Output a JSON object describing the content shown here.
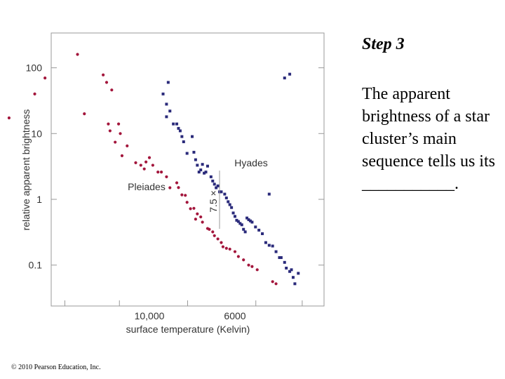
{
  "slide": {
    "title": "Step 3",
    "body": "The apparent brightness of a star cluster’s main sequence tells us its ___________.",
    "copyright": "© 2010 Pearson Education, Inc."
  },
  "chart_data": {
    "type": "scatter",
    "xlabel": "surface temperature (Kelvin)",
    "ylabel": "relative apparent brightness",
    "x_tick_labels": [
      "10,000",
      "6000"
    ],
    "y_ticks": [
      0.1,
      1,
      10,
      100
    ],
    "y_tick_labels": [
      "0.1",
      "1",
      "10",
      "100"
    ],
    "annotation": "7.5 ×",
    "colors": {
      "pleiades": "#a3163c",
      "hyades": "#2a2a7a",
      "axis": "#999999",
      "text": "#333333"
    },
    "series": [
      {
        "name": "Pleiades",
        "label": "Pleiades",
        "points": [
          [
            -0.82,
            17.3
          ],
          [
            -0.67,
            40
          ],
          [
            -0.61,
            70
          ],
          [
            -0.42,
            160
          ],
          [
            -0.38,
            20
          ],
          [
            -0.27,
            78
          ],
          [
            -0.25,
            60
          ],
          [
            -0.22,
            46
          ],
          [
            -0.24,
            14
          ],
          [
            -0.18,
            14
          ],
          [
            -0.23,
            11
          ],
          [
            -0.17,
            10
          ],
          [
            -0.2,
            7.4
          ],
          [
            -0.16,
            4.6
          ],
          [
            -0.13,
            6.5
          ],
          [
            -0.08,
            3.6
          ],
          [
            -0.05,
            3.3
          ],
          [
            -0.03,
            2.9
          ],
          [
            -0.02,
            3.7
          ],
          [
            0.0,
            4.3
          ],
          [
            0.02,
            3.3
          ],
          [
            0.05,
            2.6
          ],
          [
            0.07,
            2.6
          ],
          [
            0.1,
            2.2
          ],
          [
            0.12,
            1.5
          ],
          [
            0.16,
            1.78
          ],
          [
            0.17,
            1.51
          ],
          [
            0.19,
            1.17
          ],
          [
            0.21,
            1.15
          ],
          [
            0.22,
            0.9
          ],
          [
            0.24,
            0.72
          ],
          [
            0.26,
            0.73
          ],
          [
            0.27,
            0.5
          ],
          [
            0.28,
            0.6
          ],
          [
            0.3,
            0.54
          ],
          [
            0.31,
            0.45
          ],
          [
            0.34,
            0.36
          ],
          [
            0.35,
            0.35
          ],
          [
            0.37,
            0.32
          ],
          [
            0.38,
            0.28
          ],
          [
            0.4,
            0.25
          ],
          [
            0.42,
            0.22
          ],
          [
            0.43,
            0.19
          ],
          [
            0.45,
            0.18
          ],
          [
            0.47,
            0.175
          ],
          [
            0.5,
            0.16
          ],
          [
            0.52,
            0.135
          ],
          [
            0.55,
            0.12
          ],
          [
            0.58,
            0.1
          ],
          [
            0.6,
            0.095
          ],
          [
            0.63,
            0.085
          ],
          [
            0.72,
            0.056
          ],
          [
            0.74,
            0.052
          ]
        ]
      },
      {
        "name": "Hyades",
        "label": "Hyades",
        "points": [
          [
            0.08,
            40
          ],
          [
            0.1,
            28
          ],
          [
            0.1,
            18
          ],
          [
            0.11,
            60
          ],
          [
            0.12,
            22
          ],
          [
            0.14,
            14
          ],
          [
            0.16,
            14
          ],
          [
            0.17,
            12
          ],
          [
            0.18,
            11
          ],
          [
            0.19,
            9
          ],
          [
            0.2,
            7.5
          ],
          [
            0.22,
            5
          ],
          [
            0.25,
            9
          ],
          [
            0.26,
            5.2
          ],
          [
            0.27,
            4
          ],
          [
            0.28,
            3.3
          ],
          [
            0.29,
            2.6
          ],
          [
            0.3,
            2.8
          ],
          [
            0.31,
            3.4
          ],
          [
            0.32,
            2.5
          ],
          [
            0.33,
            2.6
          ],
          [
            0.34,
            3.2
          ],
          [
            0.36,
            2.2
          ],
          [
            0.37,
            1.9
          ],
          [
            0.38,
            1.7
          ],
          [
            0.39,
            1.5
          ],
          [
            0.4,
            1.6
          ],
          [
            0.41,
            1.3
          ],
          [
            0.42,
            1.3
          ],
          [
            0.44,
            1.2
          ],
          [
            0.45,
            1.05
          ],
          [
            0.46,
            0.92
          ],
          [
            0.47,
            0.83
          ],
          [
            0.48,
            0.75
          ],
          [
            0.49,
            0.62
          ],
          [
            0.5,
            0.55
          ],
          [
            0.51,
            0.48
          ],
          [
            0.52,
            0.46
          ],
          [
            0.53,
            0.43
          ],
          [
            0.54,
            0.41
          ],
          [
            0.55,
            0.35
          ],
          [
            0.56,
            0.32
          ],
          [
            0.57,
            0.52
          ],
          [
            0.58,
            0.49
          ],
          [
            0.59,
            0.47
          ],
          [
            0.6,
            0.45
          ],
          [
            0.62,
            0.38
          ],
          [
            0.64,
            0.34
          ],
          [
            0.66,
            0.3
          ],
          [
            0.68,
            0.22
          ],
          [
            0.7,
            0.2
          ],
          [
            0.72,
            0.195
          ],
          [
            0.74,
            0.16
          ],
          [
            0.76,
            0.13
          ],
          [
            0.77,
            0.13
          ],
          [
            0.79,
            0.11
          ],
          [
            0.8,
            0.09
          ],
          [
            0.82,
            0.08
          ],
          [
            0.83,
            0.085
          ],
          [
            0.84,
            0.065
          ],
          [
            0.85,
            0.052
          ],
          [
            0.87,
            0.075
          ],
          [
            0.7,
            1.2
          ],
          [
            0.79,
            70
          ],
          [
            0.82,
            80
          ]
        ]
      }
    ]
  }
}
